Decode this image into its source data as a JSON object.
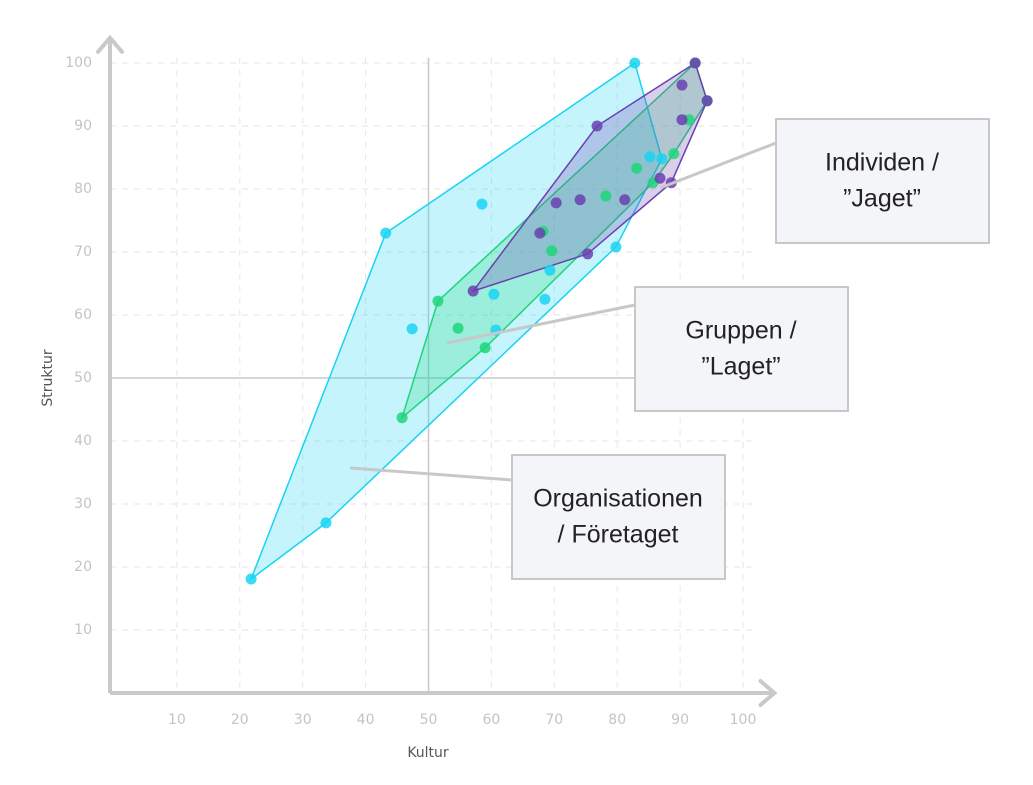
{
  "chart_data": {
    "type": "scatter",
    "x_label": "Kultur",
    "y_label": "Struktur",
    "xlim": [
      0,
      105
    ],
    "ylim": [
      0,
      104
    ],
    "xticks": [
      10,
      20,
      30,
      40,
      50,
      60,
      70,
      80,
      90,
      100
    ],
    "yticks": [
      10,
      20,
      30,
      40,
      50,
      60,
      70,
      80,
      90,
      100
    ],
    "grid": true,
    "reference_lines": {
      "x": 50,
      "y": 50
    },
    "series": [
      {
        "color": "#19d3f3",
        "x": [
          21.8,
          33.7,
          43.2,
          47.4,
          58.5,
          60.4,
          60.7,
          68.5,
          69.3,
          79.8,
          82.8,
          85.2,
          87.1
        ],
        "values": [
          18.1,
          27.0,
          73.0,
          57.8,
          77.6,
          63.3,
          57.6,
          62.5,
          67.1,
          70.8,
          100,
          85.1,
          84.8
        ]
      },
      {
        "color": "#1fd67a",
        "x": [
          45.8,
          51.5,
          54.7,
          59.0,
          68.2,
          69.6,
          78.2,
          83.1,
          85.7,
          89.0,
          91.4,
          92.4,
          94.3
        ],
        "values": [
          43.7,
          62.2,
          57.9,
          54.8,
          73.3,
          70.2,
          78.9,
          83.3,
          81.0,
          85.6,
          91.0,
          100,
          94.0
        ]
      },
      {
        "color": "#6a3fb0",
        "x": [
          57.1,
          67.7,
          70.3,
          74.1,
          75.3,
          76.8,
          81.2,
          86.8,
          88.6,
          90.3,
          90.3,
          92.4,
          94.3
        ],
        "values": [
          63.8,
          73.0,
          77.8,
          78.3,
          69.7,
          90.0,
          78.3,
          81.7,
          81.0,
          91.0,
          96.5,
          100,
          94.0
        ]
      }
    ],
    "annotations": [
      {
        "lines": [
          "Individen /",
          "”Jaget”"
        ]
      },
      {
        "lines": [
          "Gruppen /",
          "”Laget”"
        ]
      },
      {
        "lines": [
          "Organisationen",
          "/ Företaget"
        ]
      }
    ]
  }
}
